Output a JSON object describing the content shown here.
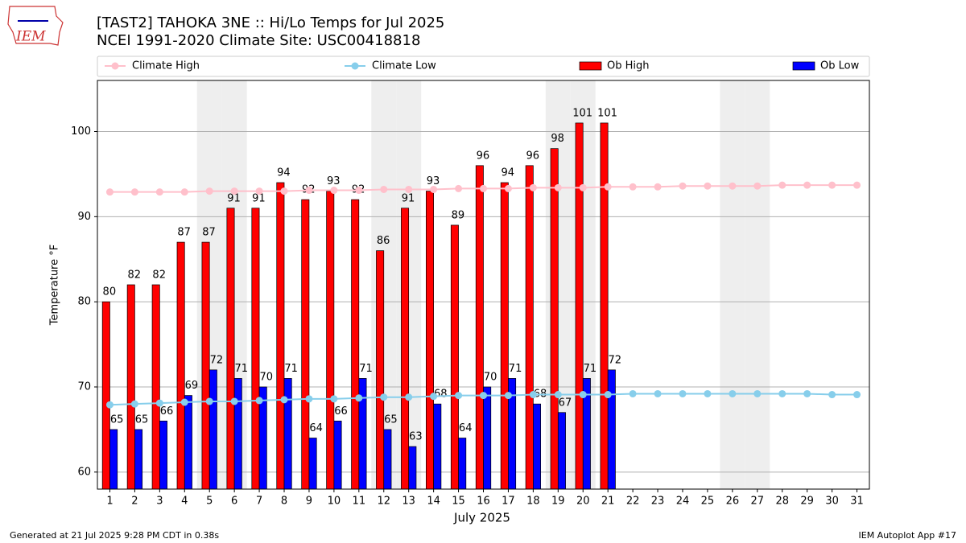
{
  "logo_text": "IEM",
  "footer_left": "Generated at 21 Jul 2025 9:28 PM CDT in 0.38s",
  "footer_right": "IEM Autoplot App #17",
  "chart_data": {
    "type": "bar",
    "title": "[TAST2] TAHOKA 3NE :: Hi/Lo Temps for Jul 2025",
    "subtitle": "NCEI 1991-2020 Climate Site: USC00418818",
    "xlabel": "July 2025",
    "ylabel": "Temperature °F",
    "categories": [
      "1",
      "2",
      "3",
      "4",
      "5",
      "6",
      "7",
      "8",
      "9",
      "10",
      "11",
      "12",
      "13",
      "14",
      "15",
      "16",
      "17",
      "18",
      "19",
      "20",
      "21",
      "22",
      "23",
      "24",
      "25",
      "26",
      "27",
      "28",
      "29",
      "30",
      "31"
    ],
    "shaded": [
      "5",
      "6",
      "12",
      "13",
      "19",
      "20",
      "26",
      "27"
    ],
    "series": [
      {
        "name": "Climate High",
        "kind": "line",
        "color": "#ffc0cb",
        "values": [
          92.9,
          92.9,
          92.9,
          92.9,
          93.0,
          93.0,
          93.0,
          93.0,
          93.1,
          93.1,
          93.1,
          93.2,
          93.2,
          93.2,
          93.3,
          93.3,
          93.3,
          93.4,
          93.4,
          93.4,
          93.5,
          93.5,
          93.5,
          93.6,
          93.6,
          93.6,
          93.6,
          93.7,
          93.7,
          93.7,
          93.7
        ]
      },
      {
        "name": "Climate Low",
        "kind": "line",
        "color": "#87ceeb",
        "values": [
          67.9,
          68.0,
          68.1,
          68.2,
          68.3,
          68.3,
          68.4,
          68.5,
          68.6,
          68.6,
          68.7,
          68.8,
          68.8,
          68.9,
          69.0,
          69.0,
          69.0,
          69.1,
          69.1,
          69.1,
          69.1,
          69.2,
          69.2,
          69.2,
          69.2,
          69.2,
          69.2,
          69.2,
          69.2,
          69.1,
          69.1
        ]
      },
      {
        "name": "Ob High",
        "kind": "bar",
        "color": "#ff0000",
        "values": [
          80,
          82,
          82,
          87,
          87,
          91,
          91,
          94,
          92,
          93,
          92,
          86,
          91,
          93,
          89,
          96,
          94,
          96,
          98,
          101,
          101,
          null,
          null,
          null,
          null,
          null,
          null,
          null,
          null,
          null,
          null
        ]
      },
      {
        "name": "Ob Low",
        "kind": "bar",
        "color": "#0000ff",
        "values": [
          65,
          65,
          66,
          69,
          72,
          71,
          70,
          71,
          64,
          66,
          71,
          65,
          63,
          68,
          64,
          70,
          71,
          68,
          67,
          71,
          72,
          null,
          null,
          null,
          null,
          null,
          null,
          null,
          null,
          null,
          null
        ]
      }
    ],
    "ylim": [
      58,
      106
    ],
    "yticks": [
      60,
      70,
      80,
      90,
      100
    ],
    "grid": true
  }
}
